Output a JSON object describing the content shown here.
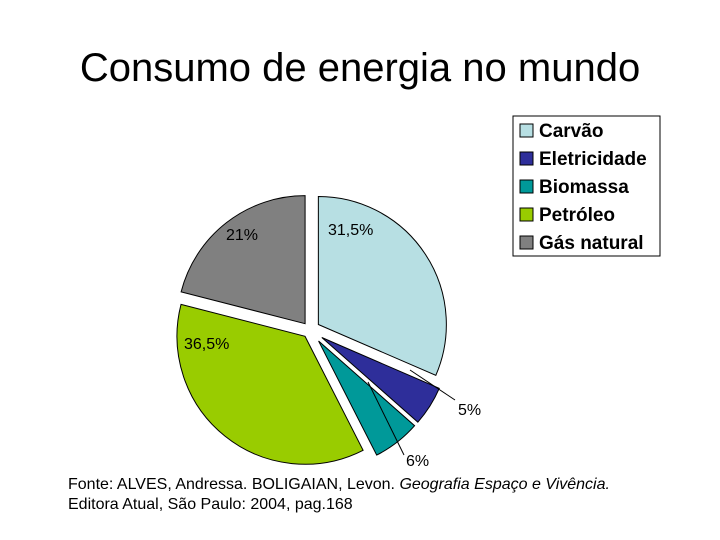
{
  "title": "Consumo de energia no mundo",
  "chart_data": {
    "type": "pie",
    "title": "Consumo de energia no mundo",
    "legend_position": "top-right",
    "slices": [
      {
        "name": "Carvão",
        "value": 31.5,
        "label": "31,5%",
        "color": "#b7dfe3"
      },
      {
        "name": "Eletricidade",
        "value": 5,
        "label": "5%",
        "color": "#2e2e9a"
      },
      {
        "name": "Biomassa",
        "value": 6,
        "label": "6%",
        "color": "#009999"
      },
      {
        "name": "Petróleo",
        "value": 36.5,
        "label": "36,5%",
        "color": "#99cc00"
      },
      {
        "name": "Gás natural",
        "value": 21,
        "label": "21%",
        "color": "#808080"
      }
    ]
  },
  "source": {
    "prefix": "Fonte: ALVES, Andressa. BOLIGAIAN, Levon. ",
    "italic": "Geografia Espaço e Vivência.",
    "line2": "Editora Atual, São Paulo: 2004, pag.168"
  }
}
